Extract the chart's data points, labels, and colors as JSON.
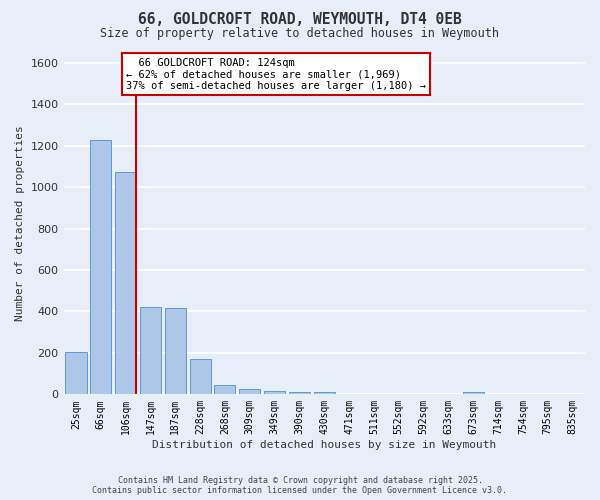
{
  "title": "66, GOLDCROFT ROAD, WEYMOUTH, DT4 0EB",
  "subtitle": "Size of property relative to detached houses in Weymouth",
  "xlabel": "Distribution of detached houses by size in Weymouth",
  "ylabel": "Number of detached properties",
  "categories": [
    "25sqm",
    "66sqm",
    "106sqm",
    "147sqm",
    "187sqm",
    "228sqm",
    "268sqm",
    "309sqm",
    "349sqm",
    "390sqm",
    "430sqm",
    "471sqm",
    "511sqm",
    "552sqm",
    "592sqm",
    "633sqm",
    "673sqm",
    "714sqm",
    "754sqm",
    "795sqm",
    "835sqm"
  ],
  "values": [
    203,
    1230,
    1075,
    420,
    415,
    170,
    45,
    25,
    15,
    10,
    10,
    0,
    0,
    0,
    0,
    0,
    10,
    0,
    0,
    0,
    0
  ],
  "bar_color": "#aec6e8",
  "bar_edge_color": "#5b9bd5",
  "background_color": "#e8eef8",
  "grid_color": "#ffffff",
  "annotation_text": "  66 GOLDCROFT ROAD: 124sqm  \n← 62% of detached houses are smaller (1,969)\n37% of semi-detached houses are larger (1,180) →",
  "annotation_box_color": "#ffffff",
  "annotation_box_edge": "#cc0000",
  "red_line_color": "#cc0000",
  "ylim": [
    0,
    1650
  ],
  "yticks": [
    0,
    200,
    400,
    600,
    800,
    1000,
    1200,
    1400,
    1600
  ],
  "copyright_line1": "Contains HM Land Registry data © Crown copyright and database right 2025.",
  "copyright_line2": "Contains public sector information licensed under the Open Government Licence v3.0."
}
